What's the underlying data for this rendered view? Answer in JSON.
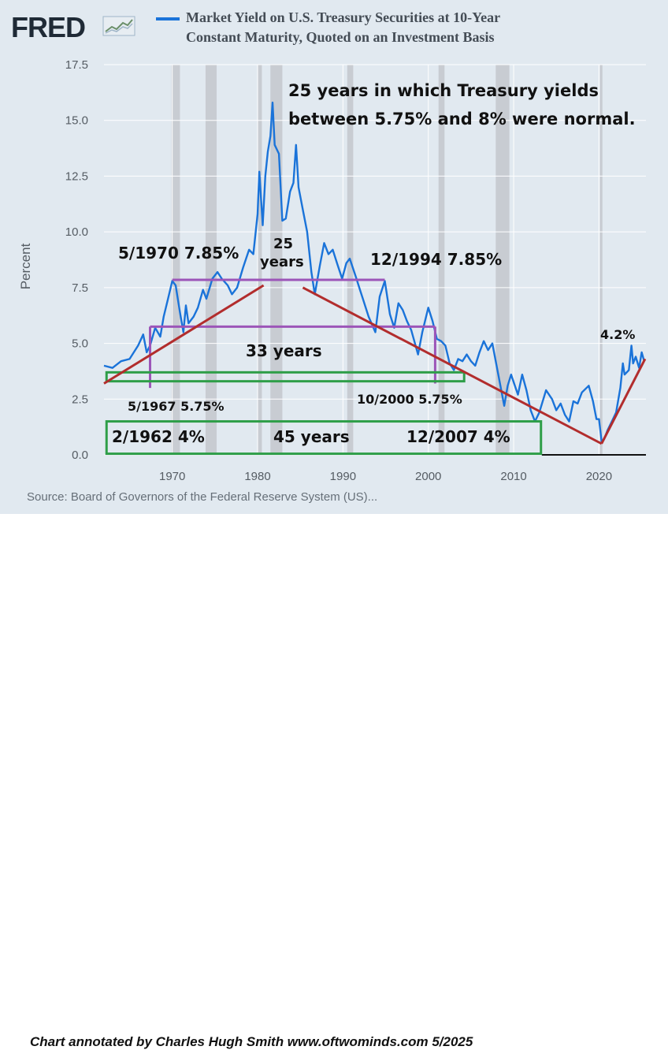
{
  "header": {
    "logo_text": "FRED",
    "logo_icon": "fred-chart-icon",
    "title_line1": "Market Yield on U.S. Treasury Securities at 10-Year",
    "title_line2": "Constant Maturity, Quoted on an Investment Basis"
  },
  "footer": {
    "source": "Source: Board of Governors of the Federal Reserve System (US)...",
    "credit": "Chart annotated by Charles Hugh Smith  www.oftwominds.com  5/2025"
  },
  "colors": {
    "series": "#1a73d9",
    "background": "#e1e9f0",
    "recession": "#c8ccd2",
    "trend": "#b22d2d",
    "band": "#9c55b8",
    "box": "#2e9e48"
  },
  "chart_data": {
    "type": "line",
    "ylabel": "Percent",
    "xlim": [
      1962,
      2025.5
    ],
    "ylim": [
      0,
      17.5
    ],
    "x_ticks": [
      1970,
      1980,
      1990,
      2000,
      2010,
      2020
    ],
    "y_ticks": [
      "0.0",
      "2.5",
      "5.0",
      "7.5",
      "10.0",
      "12.5",
      "15.0",
      "17.5"
    ],
    "grid": true,
    "recessions": [
      [
        1969.9,
        1970.9
      ],
      [
        1973.9,
        1975.2
      ],
      [
        1980.0,
        1980.5
      ],
      [
        1981.5,
        1982.9
      ],
      [
        1990.5,
        1991.2
      ],
      [
        2001.2,
        2001.9
      ],
      [
        2007.9,
        2009.5
      ],
      [
        2020.1,
        2020.4
      ]
    ],
    "series": [
      {
        "name": "Market Yield on U.S. Treasury Securities at 10-Year Constant Maturity, Quoted on an Investment Basis",
        "x": [
          1962.0,
          1963.0,
          1964.0,
          1965.0,
          1966.0,
          1966.6,
          1967.0,
          1967.4,
          1968.0,
          1968.6,
          1969.0,
          1969.5,
          1970.0,
          1970.4,
          1970.9,
          1971.3,
          1971.6,
          1971.9,
          1972.5,
          1973.0,
          1973.6,
          1974.0,
          1974.7,
          1975.3,
          1975.8,
          1976.5,
          1977.0,
          1977.6,
          1978.3,
          1979.0,
          1979.5,
          1980.0,
          1980.2,
          1980.6,
          1980.9,
          1981.2,
          1981.5,
          1981.75,
          1982.0,
          1982.5,
          1982.9,
          1983.3,
          1983.8,
          1984.2,
          1984.5,
          1984.8,
          1985.3,
          1985.8,
          1986.3,
          1986.7,
          1987.3,
          1987.8,
          1988.3,
          1988.8,
          1989.3,
          1989.9,
          1990.4,
          1990.8,
          1991.5,
          1992.0,
          1992.5,
          1993.0,
          1993.8,
          1994.3,
          1994.9,
          1995.5,
          1996.0,
          1996.5,
          1997.0,
          1997.5,
          1998.0,
          1998.8,
          1999.3,
          2000.0,
          2000.5,
          2001.0,
          2001.5,
          2002.0,
          2002.5,
          2003.0,
          2003.5,
          2004.0,
          2004.5,
          2005.0,
          2005.5,
          2006.0,
          2006.5,
          2007.0,
          2007.5,
          2008.0,
          2008.9,
          2009.3,
          2009.7,
          2010.5,
          2011.0,
          2011.5,
          2012.0,
          2012.5,
          2013.0,
          2013.8,
          2014.5,
          2015.0,
          2015.5,
          2016.0,
          2016.5,
          2017.0,
          2017.5,
          2018.0,
          2018.8,
          2019.3,
          2019.7,
          2020.0,
          2020.3,
          2020.6,
          2021.0,
          2021.5,
          2022.0,
          2022.5,
          2022.8,
          2023.0,
          2023.5,
          2023.8,
          2024.0,
          2024.3,
          2024.7,
          2025.0,
          2025.3
        ],
        "y": [
          4.0,
          3.9,
          4.2,
          4.3,
          4.9,
          5.4,
          4.6,
          4.9,
          5.7,
          5.3,
          6.2,
          7.0,
          7.8,
          7.6,
          6.4,
          5.5,
          6.7,
          5.9,
          6.2,
          6.6,
          7.4,
          7.0,
          7.9,
          8.2,
          7.9,
          7.6,
          7.2,
          7.5,
          8.4,
          9.2,
          9.0,
          10.8,
          12.7,
          10.3,
          12.5,
          13.6,
          14.3,
          15.8,
          13.9,
          13.5,
          10.5,
          10.6,
          11.8,
          12.2,
          13.9,
          12.0,
          11.0,
          10.0,
          8.2,
          7.2,
          8.5,
          9.5,
          9.0,
          9.2,
          8.6,
          7.9,
          8.6,
          8.8,
          8.0,
          7.4,
          6.8,
          6.2,
          5.5,
          7.1,
          7.8,
          6.3,
          5.7,
          6.8,
          6.5,
          6.0,
          5.6,
          4.5,
          5.5,
          6.6,
          6.0,
          5.2,
          5.1,
          4.9,
          4.1,
          3.8,
          4.3,
          4.2,
          4.5,
          4.2,
          4.0,
          4.6,
          5.1,
          4.7,
          5.0,
          4.0,
          2.2,
          3.1,
          3.6,
          2.7,
          3.6,
          2.9,
          2.0,
          1.5,
          1.9,
          2.9,
          2.5,
          2.0,
          2.3,
          1.8,
          1.5,
          2.4,
          2.3,
          2.8,
          3.1,
          2.4,
          1.6,
          1.6,
          0.6,
          0.7,
          1.1,
          1.5,
          1.9,
          3.0,
          4.1,
          3.6,
          3.8,
          4.9,
          4.1,
          4.4,
          3.9,
          4.6,
          4.2
        ]
      }
    ],
    "annotations": {
      "header_note_line1": "25 years in which Treasury yields",
      "header_note_line2": "between 5.75% and 8% were normal.",
      "label_1970": "5/1970 7.85%",
      "label_25_line1": "25",
      "label_25_line2": "years",
      "label_1994": "12/1994  7.85%",
      "label_33": "33 years",
      "label_1967": "5/1967 5.75%",
      "label_2000": "10/2000  5.75%",
      "label_1962": "2/1962  4%",
      "label_45": "45 years",
      "label_2007": "12/2007  4%",
      "label_peak": "4.2%"
    }
  }
}
